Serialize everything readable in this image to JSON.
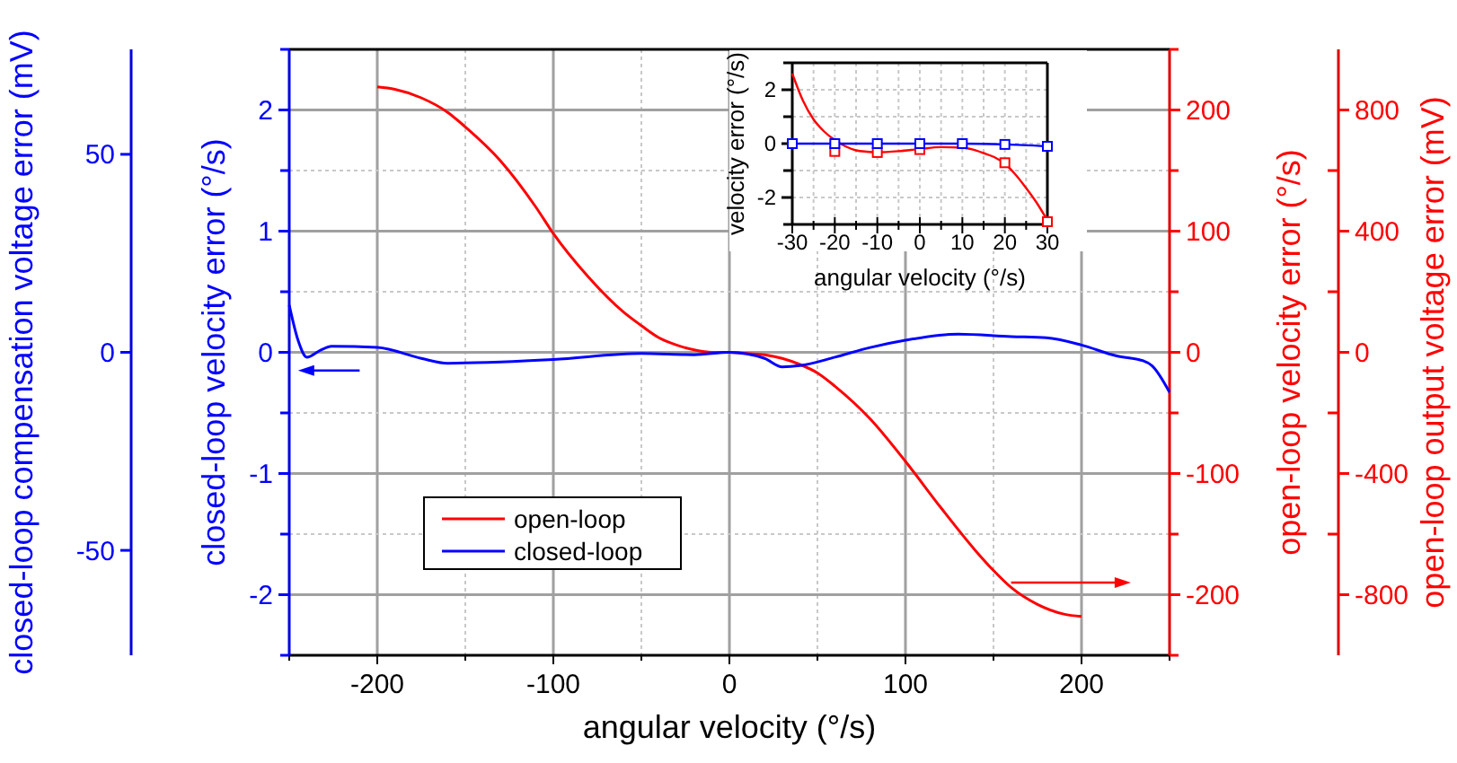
{
  "chart_data": [
    {
      "type": "line",
      "xlabel": "angular velocity (°/s)",
      "ylabel": "open-loop velocity error (°/s)",
      "y2label": "open-loop output voltage error (mV)",
      "xlim": [
        -250,
        250
      ],
      "xticks": [
        {
          "value": -250,
          "label": null
        },
        -200,
        {
          "value": -150,
          "label": null
        },
        -100,
        {
          "value": -50,
          "label": null
        },
        0,
        {
          "value": 50,
          "label": null
        },
        100,
        {
          "value": 150,
          "label": null
        },
        200,
        {
          "value": 250,
          "label": null
        }
      ],
      "ylim": [
        -250,
        250
      ],
      "yticks": [
        {
          "value": -250,
          "label": null
        },
        -200,
        {
          "value": -150,
          "label": null
        },
        -100,
        {
          "value": -50,
          "label": null
        },
        0,
        {
          "value": 50,
          "label": null
        },
        100,
        {
          "value": 150,
          "label": null
        },
        200,
        {
          "value": 250,
          "label": null
        }
      ],
      "y2lim": [
        -1000,
        1000
      ],
      "y2ticks": [
        -800,
        {
          "value": -600,
          "label": null
        },
        -400,
        {
          "value": -200,
          "label": null
        },
        0,
        {
          "value": 200,
          "label": null
        },
        400,
        {
          "value": 600,
          "label": null
        },
        800
      ],
      "grid": true,
      "legend": "bottom left",
      "line_style": "solid",
      "marker": "none",
      "series": [
        {
          "name": "open-loop",
          "color": "#ff0000",
          "x": [
            -200,
            -190,
            -175,
            -160,
            -150,
            -130,
            -110,
            -100,
            -80,
            -60,
            -50,
            -40,
            -30,
            -20,
            -10,
            0,
            10,
            20,
            30,
            40,
            50,
            60,
            80,
            100,
            120,
            140,
            150,
            160,
            175,
            190,
            200
          ],
          "values": [
            219,
            217,
            210,
            198,
            186,
            158,
            120,
            98,
            62,
            33,
            22,
            12,
            6,
            2,
            0,
            0,
            -1,
            -2,
            -5,
            -10,
            -17,
            -28,
            -55,
            -90,
            -128,
            -164,
            -180,
            -194,
            -208,
            -216,
            -218
          ]
        }
      ]
    },
    {
      "type": "line",
      "tick_labels": "y",
      "ylabel": "closed-loop velocity error (°/s)",
      "y2label": "closed-loop compensation voltage error (mV)",
      "xlim": [
        -250,
        250
      ],
      "ylim": [
        -2.5,
        2.5
      ],
      "yticks": [
        {
          "value": -2.5,
          "label": null
        },
        -2,
        {
          "value": -1.5,
          "label": null
        },
        -1,
        {
          "value": -0.5,
          "label": null
        },
        0,
        {
          "value": 0.5,
          "label": null
        },
        1,
        {
          "value": 1.5,
          "label": null
        },
        2,
        {
          "value": 2.5,
          "label": null
        }
      ],
      "y2lim": [
        -76.5,
        76.5
      ],
      "y2ticks": [
        -50,
        0,
        50
      ],
      "legend": "bottom left",
      "line_style": "solid",
      "marker": "none",
      "series": [
        {
          "name": "closed-loop",
          "color": "#0000ff",
          "x": [
            -250,
            -245,
            -240,
            -232,
            -226,
            -200,
            -175,
            -160,
            -130,
            -100,
            -50,
            -20,
            0,
            20,
            30,
            40,
            60,
            80,
            100,
            130,
            160,
            180,
            200,
            220,
            235,
            240,
            250
          ],
          "values": [
            0.39,
            0.1,
            -0.04,
            0.02,
            0.05,
            0.04,
            -0.05,
            -0.09,
            -0.08,
            -0.06,
            -0.01,
            -0.02,
            0,
            -0.05,
            -0.12,
            -0.11,
            -0.04,
            0.04,
            0.1,
            0.15,
            0.13,
            0.12,
            0.06,
            -0.03,
            -0.07,
            -0.11,
            -0.33
          ]
        }
      ]
    },
    {
      "type": "line",
      "xlabel": "angular velocity (°/s)",
      "ylabel": "velocity error (°/s)",
      "xlim": [
        -30,
        30
      ],
      "xticks": [
        -30,
        {
          "value": -25,
          "label": null
        },
        -20,
        {
          "value": -15,
          "label": null
        },
        -10,
        {
          "value": -5,
          "label": null
        },
        0,
        {
          "value": 5,
          "label": null
        },
        10,
        {
          "value": 15,
          "label": null
        },
        20,
        {
          "value": 25,
          "label": null
        },
        30
      ],
      "ylim": [
        -3,
        3
      ],
      "yticks": [
        {
          "value": -3,
          "label": null
        },
        -2,
        {
          "value": -1,
          "label": null
        },
        0,
        {
          "value": 1,
          "label": null
        },
        2,
        {
          "value": 3,
          "label": null
        }
      ],
      "grid": true,
      "line_style": "solid",
      "series": [
        {
          "color": "#ff0000",
          "type": "line",
          "marker": "none",
          "x": [
            -30,
            -27.5,
            -25,
            -22.5,
            -20,
            -17.5,
            -15,
            -12.5,
            -10,
            -5,
            0,
            5,
            10,
            12.5,
            15,
            17.5,
            20,
            22.5,
            25,
            27.5,
            30
          ],
          "values": [
            2.6,
            1.6,
            0.9,
            0.45,
            0.13,
            -0.1,
            -0.25,
            -0.3,
            -0.32,
            -0.28,
            -0.2,
            -0.13,
            -0.15,
            -0.22,
            -0.35,
            -0.5,
            -0.75,
            -1.15,
            -1.65,
            -2.2,
            -2.85
          ]
        },
        {
          "color": "#ff0000",
          "type": "scatter",
          "marker": "square",
          "x": [
            -20,
            -10,
            0,
            20,
            30
          ],
          "values": [
            -0.29,
            -0.33,
            -0.22,
            -0.71,
            -2.9
          ]
        },
        {
          "color": "#0000ff",
          "type": "line",
          "marker": "square",
          "x": [
            -30,
            -20,
            -10,
            0,
            10,
            20,
            30
          ],
          "values": [
            0,
            0,
            0,
            0,
            0,
            -0.03,
            -0.1
          ]
        }
      ]
    }
  ]
}
